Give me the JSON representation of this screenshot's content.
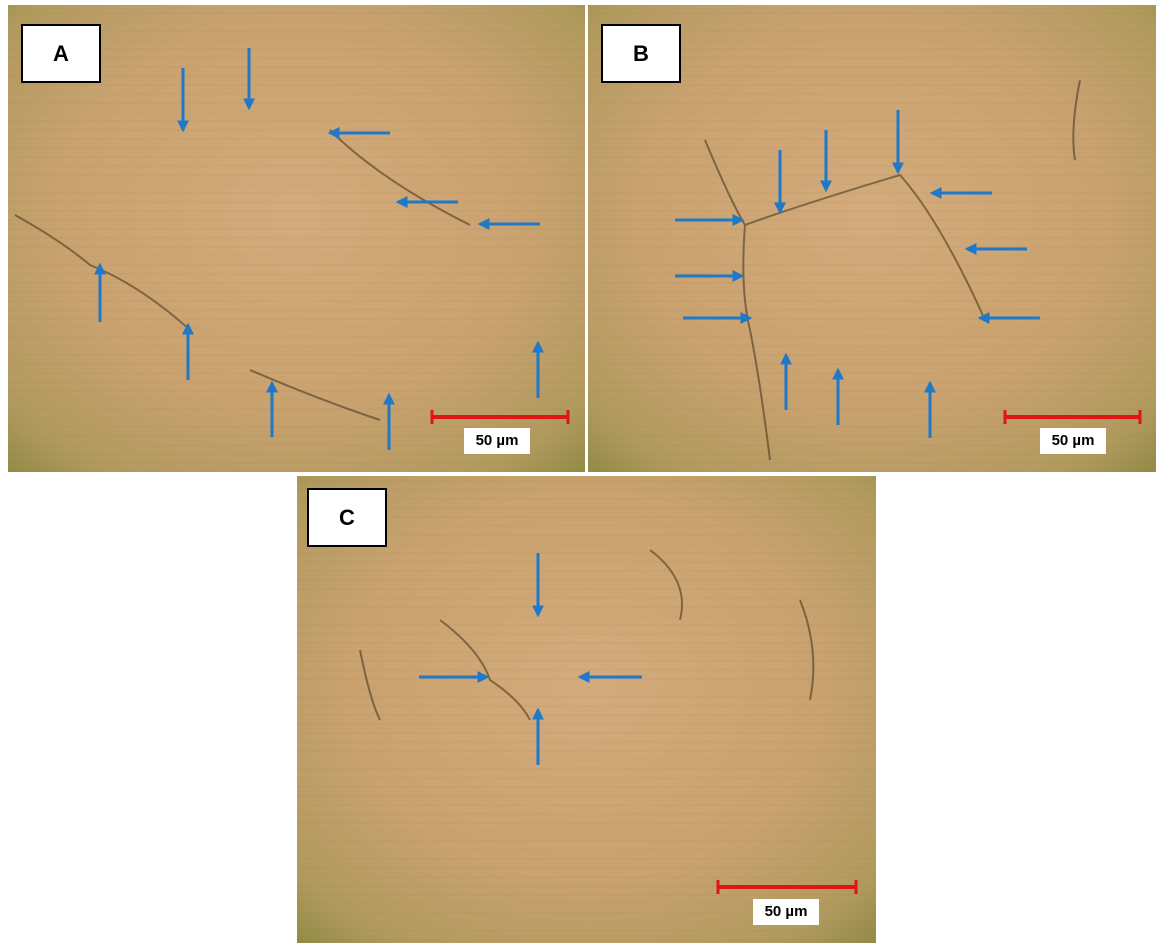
{
  "panels": [
    {
      "label": "A",
      "scale_bar": "50 µm"
    },
    {
      "label": "B",
      "scale_bar": "50 µm"
    },
    {
      "label": "C",
      "scale_bar": "50 µm"
    }
  ]
}
